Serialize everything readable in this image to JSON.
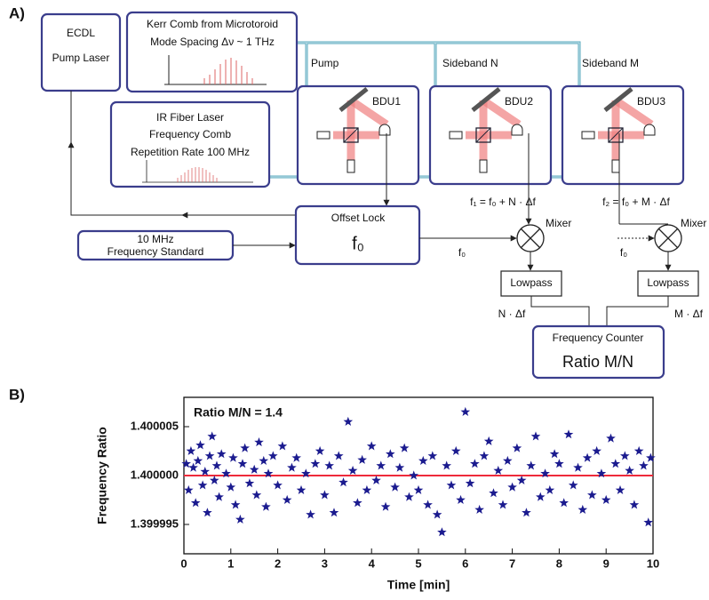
{
  "panel_a": {
    "label": "A)",
    "ecdl": {
      "line1": "ECDL",
      "line2": "Pump Laser"
    },
    "kerr_comb": {
      "line1": "Kerr Comb from Microtoroid",
      "line2": "Mode Spacing Δν ~ 1 THz"
    },
    "fiber_comb": {
      "line1": "IR Fiber Laser",
      "line2": "Frequency Comb",
      "line3": "Repetition Rate 100 MHz"
    },
    "beams": [
      "Pump",
      "Sideband N",
      "Sideband M"
    ],
    "bdus": [
      "BDU1",
      "BDU2",
      "BDU3"
    ],
    "beat_notes": [
      "f₁ = f₀ + N · Δf",
      "f₂ = f₀ + M · Δf"
    ],
    "offset_lock": {
      "line1": "Offset Lock",
      "line2": "f₀"
    },
    "standard": {
      "line1": "10 MHz",
      "line2": "Frequency Standard"
    },
    "f0_labels": [
      "f₀",
      "f₀"
    ],
    "mixers": [
      "Mixer",
      "Mixer"
    ],
    "lowpass": [
      "Lowpass",
      "Lowpass"
    ],
    "difference_labels": [
      "N · Δf",
      "M · Δf"
    ],
    "counter": {
      "line1": "Frequency Counter",
      "line2": "Ratio M/N"
    }
  },
  "panel_b_label": "B)",
  "chart_data": {
    "type": "scatter",
    "annotation": "Ratio M/N = 1.4",
    "x_label": "Time [min]",
    "y_label": "Frequency Ratio",
    "marker_color": "#1b1b8f",
    "reference_line": {
      "value": 1.4,
      "color": "#ee2a3a"
    },
    "xlim": [
      0,
      10
    ],
    "ylim": [
      1.399992,
      1.400008
    ],
    "xticks": [
      0,
      1,
      2,
      3,
      4,
      5,
      6,
      7,
      8,
      9,
      10
    ],
    "yticks": [
      1.399995,
      {
        "value": 1.4,
        "label": "1.400000"
      },
      1.400005
    ],
    "x": [
      0.05,
      0.1,
      0.15,
      0.2,
      0.25,
      0.3,
      0.35,
      0.4,
      0.45,
      0.5,
      0.55,
      0.6,
      0.65,
      0.7,
      0.75,
      0.8,
      0.9,
      1.0,
      1.05,
      1.1,
      1.2,
      1.25,
      1.3,
      1.4,
      1.5,
      1.55,
      1.6,
      1.7,
      1.75,
      1.8,
      1.9,
      2.0,
      2.1,
      2.2,
      2.3,
      2.4,
      2.5,
      2.6,
      2.7,
      2.8,
      2.9,
      3.0,
      3.1,
      3.2,
      3.3,
      3.4,
      3.5,
      3.6,
      3.7,
      3.8,
      3.9,
      4.0,
      4.1,
      4.2,
      4.3,
      4.4,
      4.5,
      4.6,
      4.7,
      4.8,
      4.9,
      5.0,
      5.1,
      5.2,
      5.3,
      5.4,
      5.5,
      5.6,
      5.7,
      5.8,
      5.9,
      6.0,
      6.1,
      6.2,
      6.3,
      6.4,
      6.5,
      6.6,
      6.7,
      6.8,
      6.9,
      7.0,
      7.1,
      7.2,
      7.3,
      7.4,
      7.5,
      7.6,
      7.7,
      7.8,
      7.9,
      8.0,
      8.1,
      8.2,
      8.3,
      8.4,
      8.5,
      8.6,
      8.7,
      8.8,
      8.9,
      9.0,
      9.1,
      9.2,
      9.3,
      9.4,
      9.5,
      9.6,
      9.7,
      9.8,
      9.9,
      9.95
    ],
    "values": [
      1.4000012,
      1.3999985,
      1.4000025,
      1.4000008,
      1.3999972,
      1.4000015,
      1.4000031,
      1.399999,
      1.4000004,
      1.3999962,
      1.400002,
      1.400004,
      1.3999995,
      1.400001,
      1.3999978,
      1.4000022,
      1.4000002,
      1.3999988,
      1.4000018,
      1.399997,
      1.3999955,
      1.4000012,
      1.4000028,
      1.3999992,
      1.4000006,
      1.399998,
      1.4000034,
      1.4000015,
      1.3999968,
      1.4000002,
      1.400002,
      1.399999,
      1.400003,
      1.3999975,
      1.4000008,
      1.4000018,
      1.3999985,
      1.4000002,
      1.399996,
      1.4000012,
      1.4000025,
      1.399998,
      1.400001,
      1.3999962,
      1.400002,
      1.3999993,
      1.4000055,
      1.4000005,
      1.3999972,
      1.4000016,
      1.3999985,
      1.400003,
      1.3999995,
      1.400001,
      1.3999968,
      1.4000022,
      1.3999988,
      1.4000008,
      1.4000028,
      1.3999978,
      1.4,
      1.3999985,
      1.4000015,
      1.399997,
      1.400002,
      1.399996,
      1.3999942,
      1.400001,
      1.399999,
      1.4000025,
      1.3999975,
      1.4000065,
      1.3999992,
      1.4000012,
      1.3999965,
      1.400002,
      1.4000035,
      1.3999982,
      1.4000005,
      1.399997,
      1.4000015,
      1.3999988,
      1.4000028,
      1.3999995,
      1.3999962,
      1.400001,
      1.400004,
      1.3999978,
      1.4000002,
      1.3999985,
      1.4000022,
      1.4000012,
      1.3999972,
      1.4000042,
      1.399999,
      1.4000008,
      1.3999965,
      1.4000018,
      1.399998,
      1.4000025,
      1.4000002,
      1.3999975,
      1.4000038,
      1.4000012,
      1.3999985,
      1.400002,
      1.4000005,
      1.399997,
      1.4000025,
      1.400001,
      1.3999952,
      1.4000018
    ]
  }
}
